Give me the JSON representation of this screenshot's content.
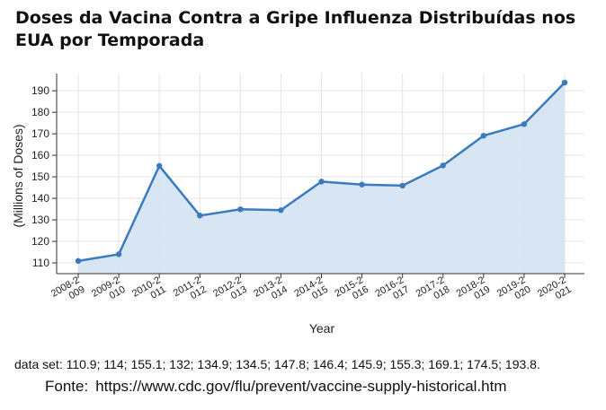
{
  "title": "Doses da Vacina Contra a Gripe Influenza Distribuídas nos EUA por Temporada",
  "dataset_text": "data set: 110.9; 114; 155.1; 132; 134.9; 134.5; 147.8; 146.4; 145.9; 155.3; 169.1; 174.5; 193.8.",
  "source": {
    "label": "Fonte:",
    "url": "https://www.cdc.gov/flu/prevent/vaccine-supply-historical.htm"
  },
  "colors": {
    "line": "#3a7bbf",
    "area": "#d6e4f2",
    "grid": "#e4e4e4",
    "axis": "#333333"
  },
  "chart_data": {
    "type": "area",
    "x": [
      [
        "2008-2",
        "009"
      ],
      [
        "2009-2",
        "010"
      ],
      [
        "2010-2",
        "011"
      ],
      [
        "2011-2",
        "012"
      ],
      [
        "2012-2",
        "013"
      ],
      [
        "2013-2",
        "014"
      ],
      [
        "2014-2",
        "015"
      ],
      [
        "2015-2",
        "016"
      ],
      [
        "2016-2",
        "017"
      ],
      [
        "2017-2",
        "018"
      ],
      [
        "2018-2",
        "019"
      ],
      [
        "2019-2",
        "020"
      ],
      [
        "2020-2",
        "021"
      ]
    ],
    "series": [
      {
        "values": [
          110.9,
          114,
          155.1,
          132,
          134.9,
          134.5,
          147.8,
          146.4,
          145.9,
          155.3,
          169.1,
          174.5,
          193.8
        ]
      }
    ],
    "xlabel": "Year",
    "ylabel": "(Millions of Doses)",
    "ylim": [
      105,
      198
    ],
    "yticks": [
      110,
      120,
      130,
      140,
      150,
      160,
      170,
      180,
      190
    ],
    "grid": true,
    "legend": "none"
  }
}
